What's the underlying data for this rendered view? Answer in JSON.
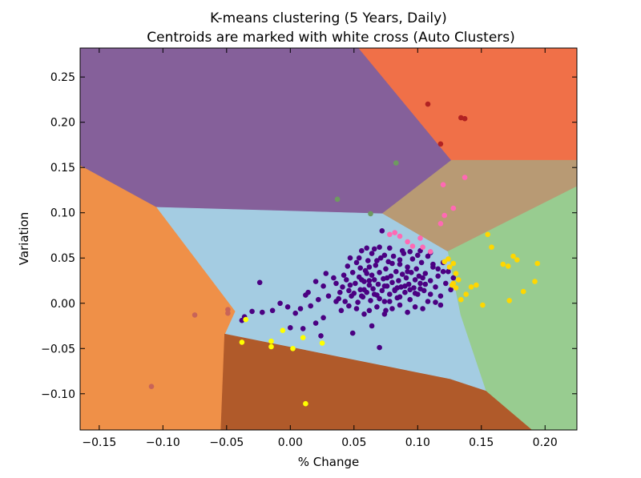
{
  "chart_data": {
    "type": "scatter",
    "title": "K-means clustering (5 Years, Daily)",
    "subtitle": "Centroids are marked with white cross (Auto Clusters)",
    "xlabel": "% Change",
    "ylabel": "Variation",
    "xlim": [
      -0.165,
      0.225
    ],
    "ylim": [
      -0.14,
      0.282
    ],
    "x_ticks": [
      "−0.15",
      "−0.10",
      "−0.05",
      "0.00",
      "0.05",
      "0.10",
      "0.15",
      "0.20"
    ],
    "x_tick_values": [
      -0.15,
      -0.1,
      -0.05,
      0.0,
      0.05,
      0.1,
      0.15,
      0.2
    ],
    "y_ticks": [
      "0.25",
      "0.20",
      "0.15",
      "0.10",
      "0.05",
      "0.00",
      "−0.05",
      "−0.10"
    ],
    "y_tick_values": [
      0.25,
      0.2,
      0.15,
      0.1,
      0.05,
      0.0,
      -0.05,
      -0.1
    ],
    "grid": false,
    "regions": [
      {
        "color": "#85609a",
        "polygon": [
          [
            -0.165,
            0.282
          ],
          [
            0.0537,
            0.282
          ],
          [
            0.1265,
            0.158
          ],
          [
            0.0722,
            0.099
          ],
          [
            -0.1053,
            0.106
          ],
          [
            -0.165,
            0.152
          ]
        ]
      },
      {
        "color": "#f07048",
        "polygon": [
          [
            0.0537,
            0.282
          ],
          [
            0.225,
            0.282
          ],
          [
            0.225,
            0.158
          ],
          [
            0.1265,
            0.158
          ]
        ]
      },
      {
        "color": "#b89a74",
        "polygon": [
          [
            0.1265,
            0.158
          ],
          [
            0.225,
            0.158
          ],
          [
            0.225,
            0.129
          ],
          [
            0.1235,
            0.057
          ],
          [
            0.0722,
            0.099
          ]
        ]
      },
      {
        "color": "#98cc90",
        "polygon": [
          [
            0.225,
            0.129
          ],
          [
            0.1235,
            0.057
          ],
          [
            0.1335,
            -0.013
          ],
          [
            0.1535,
            -0.097
          ],
          [
            0.1895,
            -0.14
          ],
          [
            0.225,
            -0.14
          ]
        ]
      },
      {
        "color": "#a4cce2",
        "polygon": [
          [
            -0.1053,
            0.106
          ],
          [
            0.0722,
            0.099
          ],
          [
            0.1235,
            0.057
          ],
          [
            0.1335,
            -0.013
          ],
          [
            0.1535,
            -0.097
          ],
          [
            0.1255,
            -0.084
          ],
          [
            -0.0515,
            -0.034
          ],
          [
            -0.0435,
            -0.009
          ]
        ]
      },
      {
        "color": "#ef9048",
        "polygon": [
          [
            -0.165,
            0.152
          ],
          [
            -0.1053,
            0.106
          ],
          [
            -0.0435,
            -0.009
          ],
          [
            -0.0515,
            -0.034
          ],
          [
            -0.0545,
            -0.14
          ],
          [
            -0.165,
            -0.14
          ]
        ]
      },
      {
        "color": "#b05a2a",
        "polygon": [
          [
            -0.0515,
            -0.034
          ],
          [
            0.1255,
            -0.084
          ],
          [
            0.1535,
            -0.097
          ],
          [
            0.1895,
            -0.14
          ],
          [
            -0.0545,
            -0.14
          ]
        ]
      }
    ],
    "series": [
      {
        "color": "#4b0082",
        "points": [
          [
            0.034,
            0.028
          ],
          [
            0.036,
            0.022
          ],
          [
            0.038,
            0.005
          ],
          [
            0.039,
            0.012
          ],
          [
            0.041,
            0.018
          ],
          [
            0.042,
            0.031
          ],
          [
            0.043,
            0.002
          ],
          [
            0.044,
            0.026
          ],
          [
            0.045,
            0.041
          ],
          [
            0.046,
            0.014
          ],
          [
            0.047,
            0.02
          ],
          [
            0.047,
            0.05
          ],
          [
            0.048,
            0.008
          ],
          [
            0.049,
            0.034
          ],
          [
            0.05,
            0.011
          ],
          [
            0.051,
            0.022
          ],
          [
            0.052,
            0.045
          ],
          [
            0.053,
            0.001
          ],
          [
            0.054,
            0.029
          ],
          [
            0.055,
            0.015
          ],
          [
            0.055,
            0.039
          ],
          [
            0.056,
            0.058
          ],
          [
            0.057,
            0.007
          ],
          [
            0.058,
            0.024
          ],
          [
            0.059,
            0.036
          ],
          [
            0.06,
            0.012
          ],
          [
            0.061,
            0.047
          ],
          [
            0.062,
            0.02
          ],
          [
            0.063,
            0.003
          ],
          [
            0.064,
            0.031
          ],
          [
            0.064,
            0.055
          ],
          [
            0.065,
            0.016
          ],
          [
            0.066,
            0.026
          ],
          [
            0.067,
            0.042
          ],
          [
            0.068,
            0.009
          ],
          [
            0.069,
            0.021
          ],
          [
            0.07,
            0.034
          ],
          [
            0.071,
            0.05
          ],
          [
            0.072,
            0.014
          ],
          [
            0.073,
            0.027
          ],
          [
            0.074,
            0.002
          ],
          [
            0.075,
            0.038
          ],
          [
            0.076,
            0.019
          ],
          [
            0.077,
            0.046
          ],
          [
            0.078,
            0.01
          ],
          [
            0.079,
            0.03
          ],
          [
            0.08,
            0.023
          ],
          [
            0.081,
            0.052
          ],
          [
            0.082,
            0.015
          ],
          [
            0.083,
            0.035
          ],
          [
            0.084,
            0.006
          ],
          [
            0.085,
            0.025
          ],
          [
            0.086,
            0.043
          ],
          [
            0.087,
            0.018
          ],
          [
            0.088,
            0.032
          ],
          [
            0.089,
            0.055
          ],
          [
            0.09,
            0.012
          ],
          [
            0.091,
            0.028
          ],
          [
            0.092,
            0.04
          ],
          [
            0.093,
            0.021
          ],
          [
            0.094,
            0.004
          ],
          [
            0.095,
            0.034
          ],
          [
            0.096,
            0.049
          ],
          [
            0.097,
            0.017
          ],
          [
            0.098,
            0.026
          ],
          [
            0.099,
            0.038
          ],
          [
            0.1,
            0.01
          ],
          [
            0.101,
            0.03
          ],
          [
            0.102,
            0.022
          ],
          [
            0.103,
            0.045
          ],
          [
            0.105,
            0.014
          ],
          [
            0.106,
            0.033
          ],
          [
            0.108,
            0.002
          ],
          [
            0.11,
            0.025
          ],
          [
            0.112,
            0.04
          ],
          [
            0.114,
            0.018
          ],
          [
            0.116,
            0.03
          ],
          [
            0.118,
            0.008
          ],
          [
            0.12,
            0.045
          ],
          [
            0.122,
            0.022
          ],
          [
            0.124,
            0.035
          ],
          [
            0.126,
            0.015
          ],
          [
            0.128,
            0.028
          ],
          [
            0.062,
            -0.008
          ],
          [
            0.068,
            -0.004
          ],
          [
            0.074,
            -0.012
          ],
          [
            0.08,
            -0.006
          ],
          [
            0.086,
            -0.002
          ],
          [
            0.058,
            -0.012
          ],
          [
            0.052,
            -0.006
          ],
          [
            0.046,
            -0.003
          ],
          [
            0.04,
            -0.008
          ],
          [
            0.092,
            -0.01
          ],
          [
            0.098,
            -0.004
          ],
          [
            0.104,
            -0.006
          ],
          [
            0.022,
            0.004
          ],
          [
            0.016,
            -0.003
          ],
          [
            0.012,
            0.009
          ],
          [
            0.008,
            -0.006
          ],
          [
            0.004,
            -0.011
          ],
          [
            -0.002,
            -0.004
          ],
          [
            -0.008,
            0.0
          ],
          [
            -0.014,
            -0.008
          ],
          [
            -0.022,
            -0.01
          ],
          [
            -0.03,
            -0.009
          ],
          [
            -0.036,
            -0.015
          ],
          [
            0.026,
            0.019
          ],
          [
            0.02,
            0.024
          ],
          [
            0.014,
            0.012
          ],
          [
            0.03,
            0.008
          ],
          [
            0.028,
            0.033
          ],
          [
            0.026,
            -0.016
          ],
          [
            0.02,
            -0.022
          ],
          [
            0.01,
            -0.028
          ],
          [
            0.0,
            -0.027
          ],
          [
            0.024,
            -0.036
          ],
          [
            0.049,
            -0.033
          ],
          [
            0.064,
            -0.025
          ],
          [
            0.075,
            -0.008
          ],
          [
            0.07,
            -0.049
          ],
          [
            0.066,
            0.06
          ],
          [
            0.072,
            0.08
          ],
          [
            0.06,
            0.061
          ],
          [
            0.054,
            0.05
          ],
          [
            0.07,
            0.062
          ],
          [
            0.078,
            0.061
          ],
          [
            0.088,
            0.058
          ],
          [
            0.094,
            0.057
          ],
          [
            0.102,
            0.058
          ],
          [
            0.108,
            0.052
          ],
          [
            0.112,
            0.043
          ],
          [
            0.116,
            0.038
          ],
          [
            0.058,
            0.015
          ],
          [
            0.062,
            0.025
          ],
          [
            0.066,
            0.01
          ],
          [
            0.07,
            0.005
          ],
          [
            0.074,
            0.019
          ],
          [
            0.078,
            0.002
          ],
          [
            0.082,
            0.014
          ],
          [
            0.086,
            0.007
          ],
          [
            0.09,
            0.019
          ],
          [
            0.094,
            0.015
          ],
          [
            0.098,
            0.011
          ],
          [
            0.102,
            0.016
          ],
          [
            0.106,
            0.021
          ],
          [
            0.11,
            0.01
          ],
          [
            0.114,
            0.001
          ],
          [
            0.118,
            -0.002
          ],
          [
            0.062,
            0.04
          ],
          [
            0.068,
            0.047
          ],
          [
            0.074,
            0.053
          ],
          [
            0.08,
            0.044
          ],
          [
            0.086,
            0.048
          ],
          [
            0.092,
            0.035
          ],
          [
            0.1,
            0.053
          ],
          [
            0.11,
            0.056
          ],
          [
            0.056,
            0.026
          ],
          [
            0.06,
            0.033
          ],
          [
            -0.024,
            0.023
          ],
          [
            0.036,
            0.002
          ],
          [
            0.056,
            0.008
          ],
          [
            0.076,
            0.028
          ],
          [
            0.084,
            0.017
          ],
          [
            0.104,
            0.028
          ],
          [
            0.12,
            0.035
          ],
          [
            -0.038,
            -0.019
          ]
        ]
      },
      {
        "color": "#ffd700",
        "points": [
          [
            0.125,
            0.04
          ],
          [
            0.128,
            0.044
          ],
          [
            0.13,
            0.033
          ],
          [
            0.132,
            0.026
          ],
          [
            0.134,
            0.004
          ],
          [
            0.138,
            0.01
          ],
          [
            0.142,
            0.018
          ],
          [
            0.146,
            0.02
          ],
          [
            0.151,
            -0.002
          ],
          [
            0.155,
            0.076
          ],
          [
            0.158,
            0.062
          ],
          [
            0.167,
            0.043
          ],
          [
            0.171,
            0.041
          ],
          [
            0.175,
            0.052
          ],
          [
            0.178,
            0.048
          ],
          [
            0.172,
            0.003
          ],
          [
            0.183,
            0.013
          ],
          [
            0.192,
            0.024
          ],
          [
            0.194,
            0.044
          ],
          [
            0.128,
            0.022
          ],
          [
            0.124,
            0.049
          ],
          [
            0.13,
            0.017
          ],
          [
            0.127,
            0.02
          ],
          [
            0.121,
            0.046
          ]
        ]
      },
      {
        "color": "#ffff00",
        "points": [
          [
            -0.035,
            -0.018
          ],
          [
            -0.038,
            -0.043
          ],
          [
            -0.015,
            -0.042
          ],
          [
            -0.015,
            -0.048
          ],
          [
            -0.006,
            -0.03
          ],
          [
            0.002,
            -0.05
          ],
          [
            0.01,
            -0.038
          ],
          [
            0.025,
            -0.044
          ],
          [
            0.012,
            -0.111
          ]
        ]
      },
      {
        "color": "#ff69b4",
        "points": [
          [
            0.078,
            0.076
          ],
          [
            0.082,
            0.078
          ],
          [
            0.086,
            0.074
          ],
          [
            0.092,
            0.068
          ],
          [
            0.096,
            0.063
          ],
          [
            0.102,
            0.072
          ],
          [
            0.104,
            0.062
          ],
          [
            0.11,
            0.057
          ],
          [
            0.118,
            0.088
          ],
          [
            0.121,
            0.097
          ],
          [
            0.128,
            0.105
          ],
          [
            0.12,
            0.131
          ],
          [
            0.137,
            0.139
          ]
        ]
      },
      {
        "color": "#b22222",
        "points": [
          [
            0.108,
            0.22
          ],
          [
            0.134,
            0.205
          ],
          [
            0.137,
            0.204
          ],
          [
            0.118,
            0.176
          ]
        ]
      },
      {
        "color": "#6e9a60",
        "points": [
          [
            0.083,
            0.155
          ],
          [
            0.037,
            0.115
          ],
          [
            0.063,
            0.099
          ]
        ]
      },
      {
        "color": "#c86458",
        "points": [
          [
            -0.075,
            -0.013
          ],
          [
            -0.049,
            -0.007
          ],
          [
            -0.049,
            -0.011
          ],
          [
            -0.109,
            -0.092
          ]
        ]
      }
    ]
  }
}
